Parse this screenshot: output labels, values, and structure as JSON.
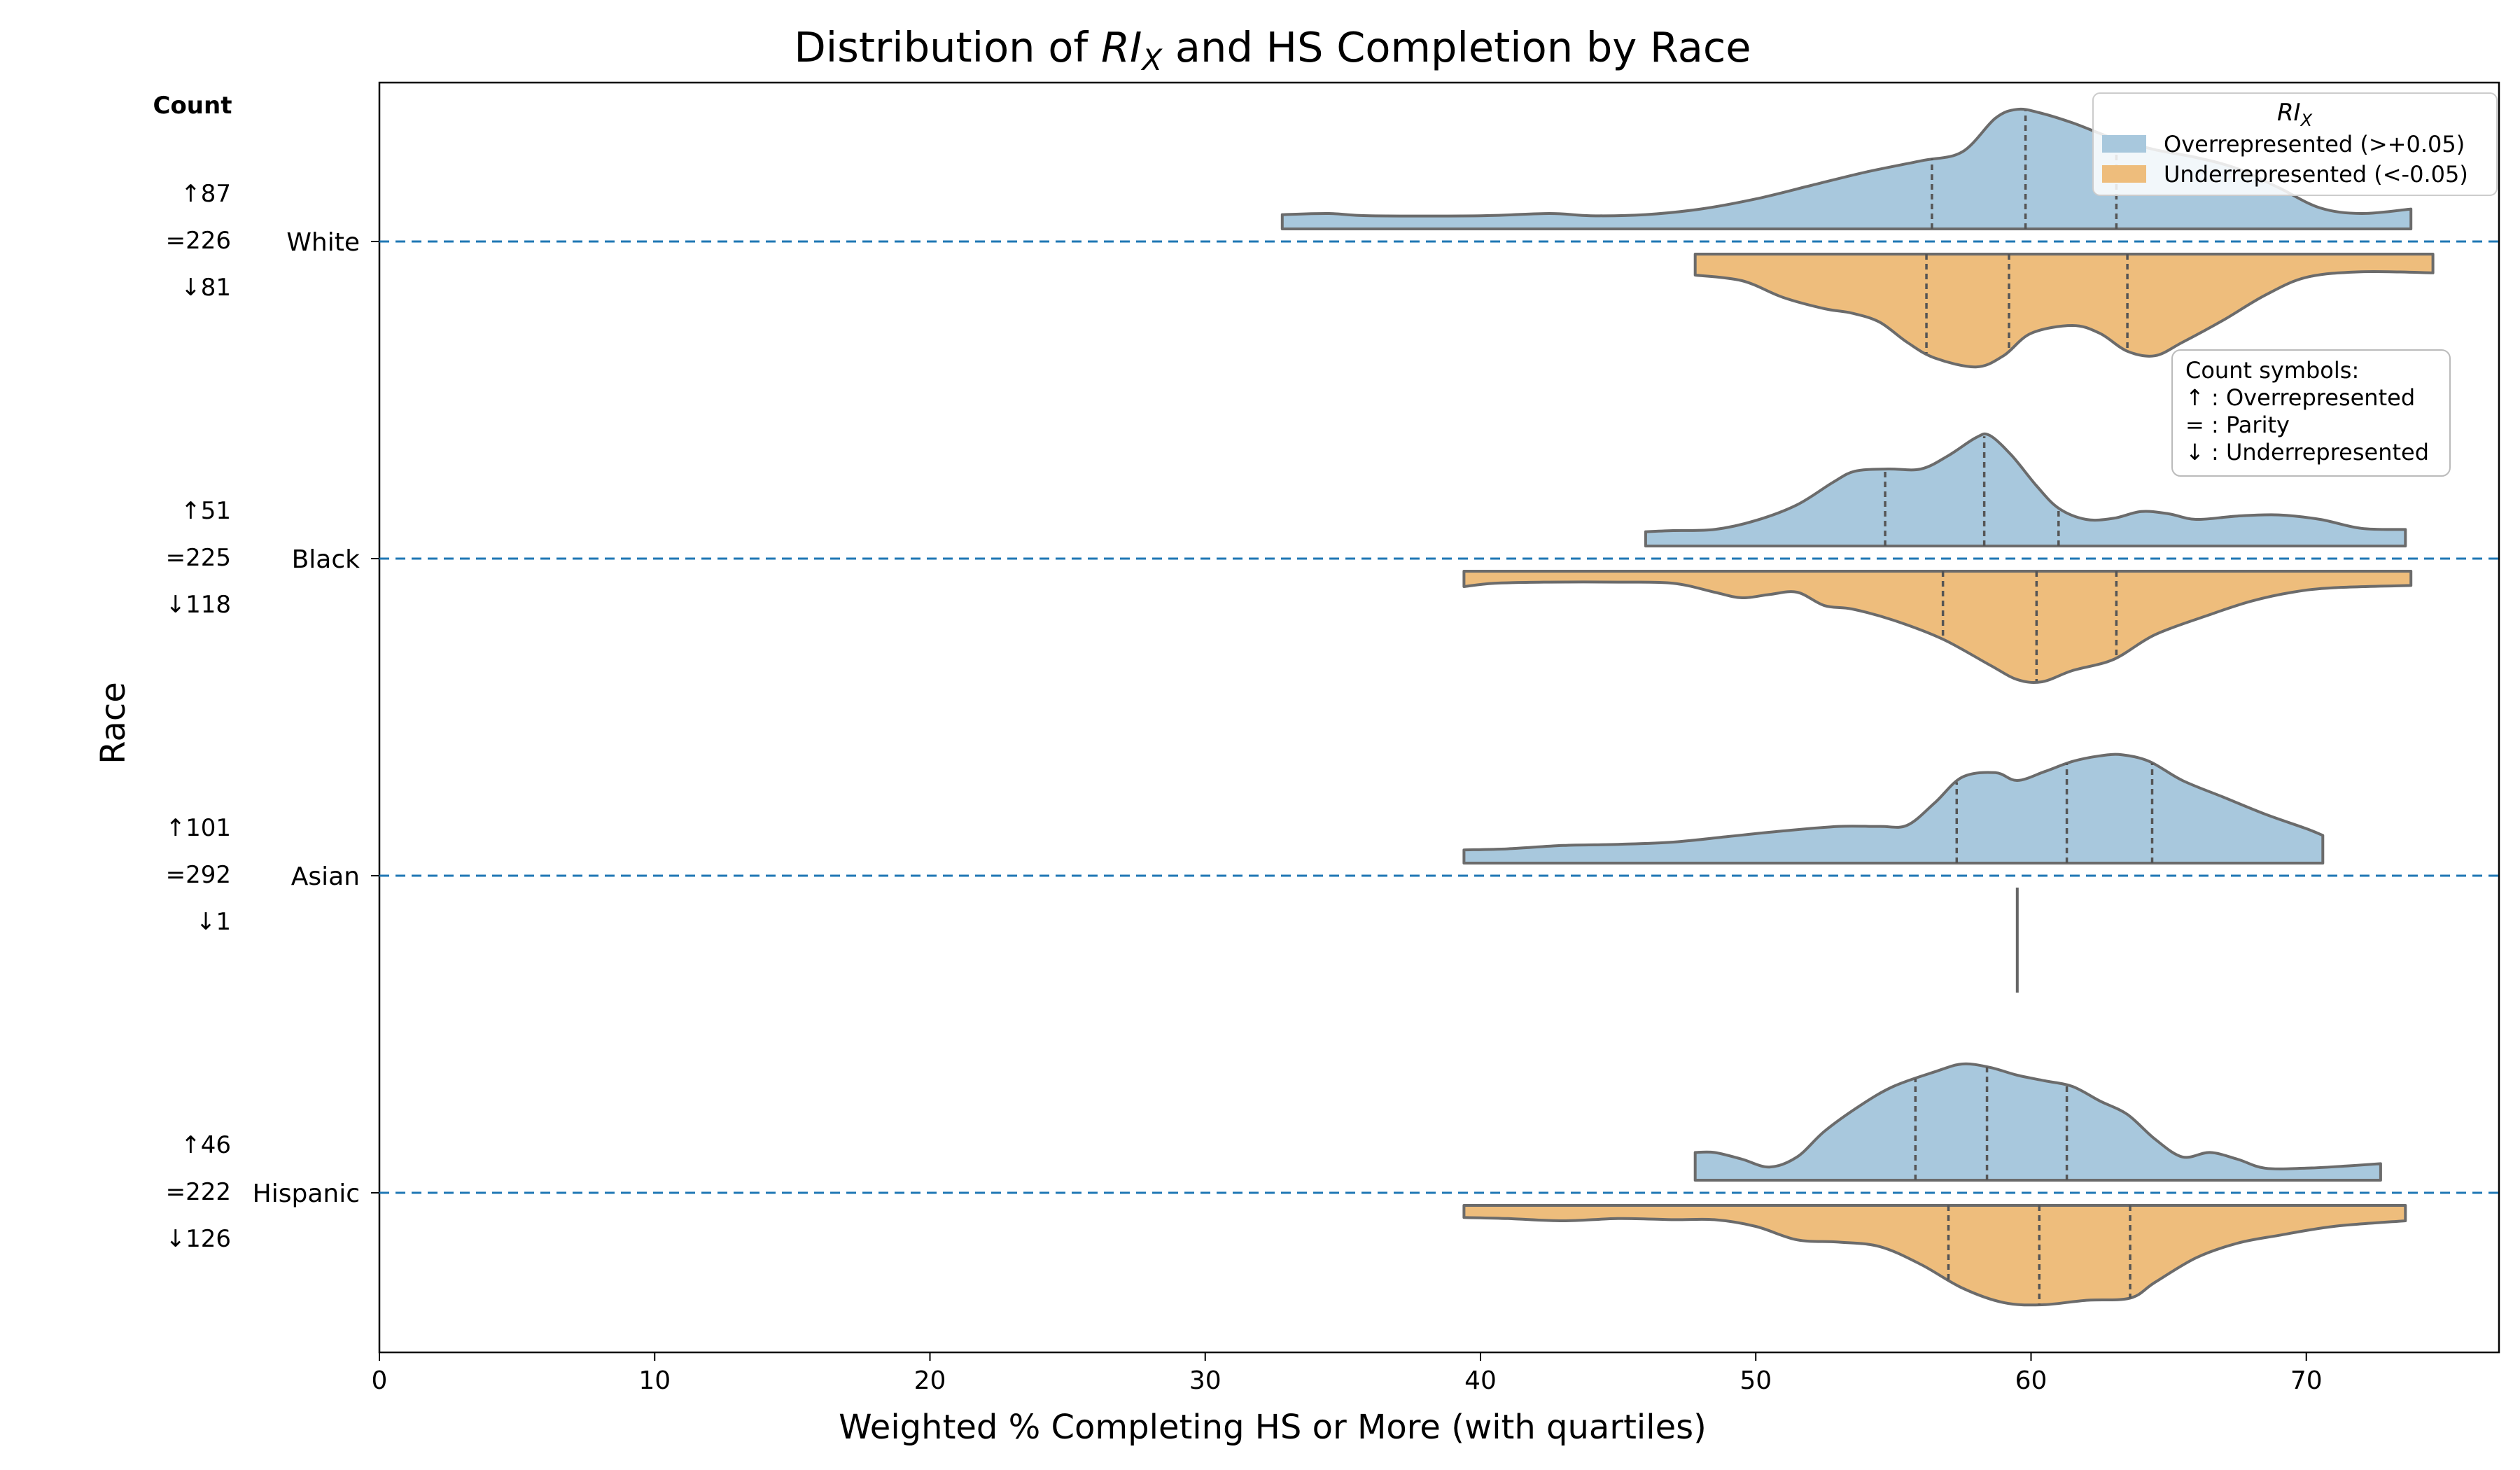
{
  "chart_data": {
    "type": "violin",
    "title": "Distribution of RI_X and HS Completion by Race",
    "xlabel": "Weighted % Completing HS or More (with quartiles)",
    "ylabel": "Race",
    "xlim": [
      0,
      77
    ],
    "xticks": [
      0,
      10,
      20,
      30,
      40,
      50,
      60,
      70
    ],
    "count_header": "Count",
    "legend": {
      "title": "RI_X",
      "placement": "top-right",
      "items": [
        {
          "label": "Overrepresented (>+0.05)",
          "color": "#a8c8dd"
        },
        {
          "label": "Underrepresented (<-0.05)",
          "color": "#eebd7c"
        }
      ]
    },
    "symbols_box": {
      "title": "Count symbols:",
      "lines": [
        "↑ : Overrepresented",
        "= : Parity",
        "↓ : Underrepresented"
      ]
    },
    "categories": [
      "White",
      "Black",
      "Asian",
      "Hispanic"
    ],
    "counts": [
      {
        "up": "↑87",
        "eq": "=226",
        "down": "↓81"
      },
      {
        "up": "↑51",
        "eq": "=225",
        "down": "↓118"
      },
      {
        "up": "↑101",
        "eq": "=292",
        "down": "↓1"
      },
      {
        "up": "↑46",
        "eq": "=222",
        "down": "↓126"
      }
    ],
    "series": [
      {
        "group": "Overrepresented",
        "color": "#a8c8dd",
        "violins": [
          {
            "range": [
              32.8,
              73.8
            ],
            "quartiles": [
              56.4,
              59.8,
              63.1
            ],
            "density": [
              [
                32.8,
                0.04
              ],
              [
                34.5,
                0.05
              ],
              [
                36,
                0.03
              ],
              [
                40,
                0.03
              ],
              [
                42.5,
                0.05
              ],
              [
                44,
                0.03
              ],
              [
                46,
                0.04
              ],
              [
                48,
                0.09
              ],
              [
                50,
                0.18
              ],
              [
                52,
                0.3
              ],
              [
                54,
                0.42
              ],
              [
                56,
                0.52
              ],
              [
                57.5,
                0.6
              ],
              [
                58.7,
                0.9
              ],
              [
                59.5,
                0.98
              ],
              [
                60.3,
                0.95
              ],
              [
                61.5,
                0.86
              ],
              [
                63,
                0.72
              ],
              [
                64.5,
                0.62
              ],
              [
                66,
                0.55
              ],
              [
                67.5,
                0.45
              ],
              [
                69,
                0.28
              ],
              [
                70.5,
                0.1
              ],
              [
                72,
                0.05
              ],
              [
                73.8,
                0.09
              ]
            ]
          },
          {
            "range": [
              46,
              73.6
            ],
            "quartiles": [
              54.7,
              58.3,
              61
            ],
            "density": [
              [
                46,
                0.04
              ],
              [
                47,
                0.05
              ],
              [
                48.5,
                0.06
              ],
              [
                50,
                0.14
              ],
              [
                51.5,
                0.28
              ],
              [
                52.8,
                0.48
              ],
              [
                53.6,
                0.58
              ],
              [
                54.8,
                0.6
              ],
              [
                56,
                0.6
              ],
              [
                57,
                0.72
              ],
              [
                58,
                0.88
              ],
              [
                58.5,
                0.9
              ],
              [
                59.3,
                0.72
              ],
              [
                60.2,
                0.45
              ],
              [
                61,
                0.25
              ],
              [
                62,
                0.15
              ],
              [
                63,
                0.16
              ],
              [
                64,
                0.22
              ],
              [
                65,
                0.2
              ],
              [
                66,
                0.15
              ],
              [
                67.5,
                0.18
              ],
              [
                69,
                0.19
              ],
              [
                70.5,
                0.15
              ],
              [
                72,
                0.07
              ],
              [
                73.6,
                0.06
              ]
            ]
          },
          {
            "range": [
              39.4,
              70.6
            ],
            "quartiles": [
              57.3,
              61.3,
              64.4
            ],
            "density": [
              [
                39.4,
                0.03
              ],
              [
                41,
                0.04
              ],
              [
                43,
                0.07
              ],
              [
                45,
                0.08
              ],
              [
                47,
                0.1
              ],
              [
                49,
                0.15
              ],
              [
                51,
                0.2
              ],
              [
                53,
                0.24
              ],
              [
                54.5,
                0.24
              ],
              [
                55.5,
                0.25
              ],
              [
                56.5,
                0.45
              ],
              [
                57.5,
                0.68
              ],
              [
                58.7,
                0.72
              ],
              [
                59.5,
                0.65
              ],
              [
                60.5,
                0.73
              ],
              [
                61.5,
                0.82
              ],
              [
                62.5,
                0.87
              ],
              [
                63.3,
                0.88
              ],
              [
                64.3,
                0.82
              ],
              [
                65.5,
                0.65
              ],
              [
                67,
                0.5
              ],
              [
                68.5,
                0.35
              ],
              [
                70,
                0.22
              ],
              [
                70.6,
                0.16
              ]
            ]
          },
          {
            "range": [
              47.8,
              72.7
            ],
            "quartiles": [
              55.8,
              58.4,
              61.3
            ],
            "density": [
              [
                47.8,
                0.16
              ],
              [
                48.5,
                0.16
              ],
              [
                49.5,
                0.1
              ],
              [
                50.5,
                0.03
              ],
              [
                51.5,
                0.12
              ],
              [
                52.5,
                0.35
              ],
              [
                53.8,
                0.58
              ],
              [
                55,
                0.75
              ],
              [
                56.5,
                0.88
              ],
              [
                57.5,
                0.95
              ],
              [
                58.5,
                0.92
              ],
              [
                59.5,
                0.85
              ],
              [
                60.5,
                0.8
              ],
              [
                61.5,
                0.75
              ],
              [
                62.5,
                0.62
              ],
              [
                63.5,
                0.5
              ],
              [
                64.5,
                0.28
              ],
              [
                65.5,
                0.12
              ],
              [
                66.5,
                0.16
              ],
              [
                67.5,
                0.1
              ],
              [
                68.5,
                0.02
              ],
              [
                70,
                0.02
              ],
              [
                71.5,
                0.04
              ],
              [
                72.7,
                0.06
              ]
            ]
          }
        ]
      },
      {
        "group": "Underrepresented",
        "color": "#eebd7c",
        "violins": [
          {
            "range": [
              47.8,
              74.6
            ],
            "quartiles": [
              56.2,
              59.2,
              63.5
            ],
            "density": [
              [
                47.8,
                0.1
              ],
              [
                49.5,
                0.15
              ],
              [
                51,
                0.3
              ],
              [
                52.5,
                0.4
              ],
              [
                53.5,
                0.44
              ],
              [
                54.5,
                0.52
              ],
              [
                55.5,
                0.7
              ],
              [
                56.5,
                0.84
              ],
              [
                58,
                0.92
              ],
              [
                59,
                0.82
              ],
              [
                60,
                0.62
              ],
              [
                61.5,
                0.55
              ],
              [
                62.5,
                0.62
              ],
              [
                63.5,
                0.78
              ],
              [
                64.5,
                0.82
              ],
              [
                65.5,
                0.7
              ],
              [
                67,
                0.5
              ],
              [
                68.5,
                0.28
              ],
              [
                70,
                0.12
              ],
              [
                72,
                0.07
              ],
              [
                74.6,
                0.08
              ]
            ]
          },
          {
            "range": [
              39.4,
              73.8
            ],
            "quartiles": [
              56.8,
              60.2,
              63.1
            ],
            "density": [
              [
                39.4,
                0.05
              ],
              [
                40.5,
                0.02
              ],
              [
                42.5,
                0.01
              ],
              [
                45,
                0.01
              ],
              [
                47,
                0.02
              ],
              [
                48.5,
                0.1
              ],
              [
                49.5,
                0.15
              ],
              [
                50.5,
                0.12
              ],
              [
                51.5,
                0.1
              ],
              [
                52.5,
                0.22
              ],
              [
                53.5,
                0.25
              ],
              [
                55,
                0.35
              ],
              [
                56.8,
                0.52
              ],
              [
                58.5,
                0.75
              ],
              [
                59.5,
                0.88
              ],
              [
                60.4,
                0.9
              ],
              [
                61.5,
                0.8
              ],
              [
                63,
                0.7
              ],
              [
                64.5,
                0.48
              ],
              [
                66.5,
                0.3
              ],
              [
                68,
                0.18
              ],
              [
                69.5,
                0.1
              ],
              [
                71,
                0.06
              ],
              [
                73.8,
                0.04
              ]
            ]
          },
          {
            "range": [
              59.5,
              59.5
            ],
            "quartiles": [],
            "single_value": 59.5,
            "density": []
          },
          {
            "range": [
              39.4,
              73.6
            ],
            "quartiles": [
              57,
              60.3,
              63.6
            ],
            "density": [
              [
                39.4,
                0.02
              ],
              [
                41,
                0.03
              ],
              [
                43,
                0.05
              ],
              [
                45,
                0.03
              ],
              [
                47,
                0.04
              ],
              [
                48.5,
                0.04
              ],
              [
                50,
                0.1
              ],
              [
                51.5,
                0.22
              ],
              [
                53,
                0.24
              ],
              [
                54.5,
                0.28
              ],
              [
                56,
                0.44
              ],
              [
                57.5,
                0.65
              ],
              [
                59,
                0.78
              ],
              [
                60.4,
                0.8
              ],
              [
                62,
                0.76
              ],
              [
                63.6,
                0.74
              ],
              [
                64.5,
                0.6
              ],
              [
                66,
                0.38
              ],
              [
                67.5,
                0.25
              ],
              [
                69,
                0.18
              ],
              [
                71,
                0.1
              ],
              [
                73.6,
                0.05
              ]
            ]
          }
        ]
      }
    ]
  }
}
